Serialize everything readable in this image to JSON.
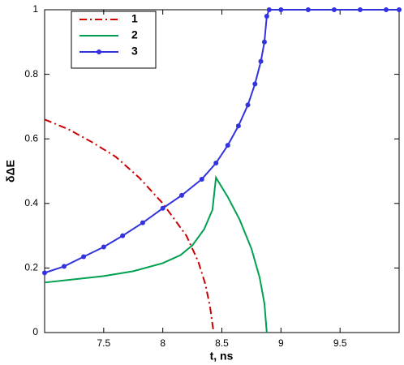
{
  "chart_data": {
    "type": "line",
    "x_label": "t, ns",
    "y_label": "δΔE",
    "xlim": [
      7,
      10
    ],
    "xticks": [
      7.5,
      8,
      8.5,
      9,
      9.5
    ],
    "ylim": [
      0,
      1
    ],
    "yticks": [
      0,
      0.2,
      0.4,
      0.6,
      0.8,
      1
    ],
    "legend": "top-left",
    "series": [
      {
        "name": "1",
        "color": "#cc0000",
        "line_style": "dashdot",
        "marker": false,
        "x": [
          7.0,
          7.2,
          7.4,
          7.6,
          7.8,
          8.0,
          8.1,
          8.2,
          8.3,
          8.36,
          8.4,
          8.43
        ],
        "values": [
          0.66,
          0.63,
          0.59,
          0.545,
          0.48,
          0.4,
          0.35,
          0.3,
          0.22,
          0.15,
          0.08,
          0
        ]
      },
      {
        "name": "2",
        "color": "#00a050",
        "line_style": "solid",
        "marker": false,
        "x": [
          7.0,
          7.25,
          7.5,
          7.75,
          8.0,
          8.15,
          8.25,
          8.35,
          8.42,
          8.45,
          8.55,
          8.65,
          8.75,
          8.82,
          8.86,
          8.88
        ],
        "values": [
          0.155,
          0.165,
          0.175,
          0.19,
          0.215,
          0.24,
          0.27,
          0.32,
          0.38,
          0.48,
          0.42,
          0.35,
          0.26,
          0.17,
          0.09,
          0
        ]
      },
      {
        "name": "3",
        "color": "#3333dd",
        "line_style": "solid",
        "marker": true,
        "x": [
          7.0,
          7.165,
          7.33,
          7.5,
          7.66,
          7.83,
          8.0,
          8.16,
          8.33,
          8.45,
          8.55,
          8.64,
          8.72,
          8.78,
          8.83,
          8.86,
          8.88,
          8.9,
          9.0,
          9.23,
          9.45,
          9.67,
          9.89,
          10.0
        ],
        "values": [
          0.185,
          0.205,
          0.235,
          0.265,
          0.3,
          0.34,
          0.385,
          0.425,
          0.475,
          0.525,
          0.58,
          0.64,
          0.705,
          0.77,
          0.84,
          0.9,
          0.98,
          1,
          1,
          1,
          1,
          1,
          1,
          1
        ]
      }
    ]
  }
}
